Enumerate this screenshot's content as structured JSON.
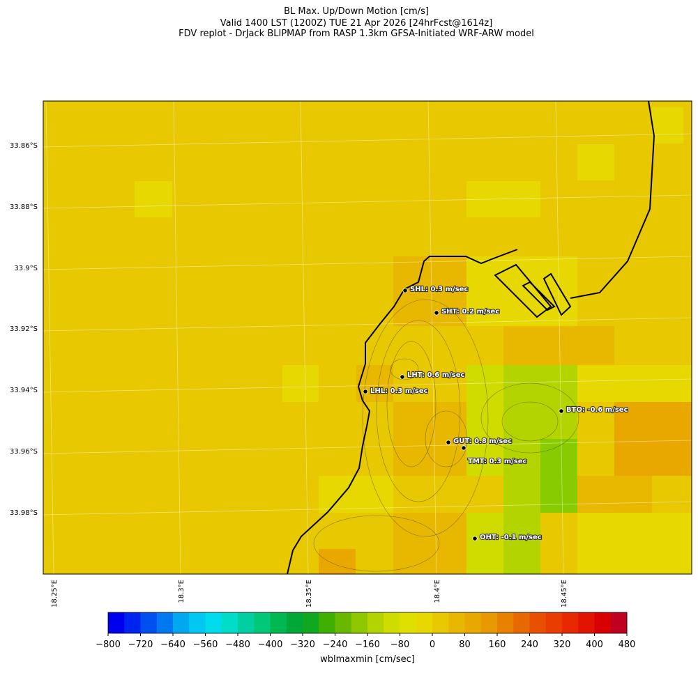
{
  "title": [
    "BL Max. Up/Down Motion [cm/s]",
    "Valid 1400 LST (1200Z) TUE 21 Apr 2026 [24hrFcst@1614z]",
    "FDV replot - DrJack BLIPMAP from RASP 1.3km GFSA-Initiated WRF-ARW model"
  ],
  "map": {
    "lat_labels": [
      "33.86°S",
      "33.88°S",
      "33.9°S",
      "33.92°S",
      "33.94°S",
      "33.96°S",
      "33.98°S"
    ],
    "lon_labels": [
      "18.25°E",
      "18.3°E",
      "18.35°E",
      "18.4°E",
      "18.45°E"
    ],
    "stations": [
      "SHL: 0.3 m/sec",
      "SHT: 0.2 m/sec",
      "LHT: 0.6 m/sec",
      "LHL: 0.3 m/sec",
      "BTO: -0.6 m/sec",
      "GUT: 0.8 m/sec",
      "TMT: 0.3 m/sec",
      "OHT: -0.1 m/sec"
    ]
  },
  "colorbar": {
    "label": "wblmaxmin [cm/sec]",
    "range": [
      -800,
      480
    ],
    "step": 40,
    "colors": [
      "#0000ee",
      "#0024f0",
      "#0050f0",
      "#0078f0",
      "#00a8f0",
      "#00c8f0",
      "#00dcec",
      "#00dcc8",
      "#00d0a0",
      "#00c878",
      "#00b850",
      "#00a838",
      "#10a820",
      "#40b000",
      "#68b800",
      "#90c800",
      "#b4d400",
      "#d0dc00",
      "#e0e000",
      "#e6d800",
      "#e8c800",
      "#e8b800",
      "#e8a800",
      "#e89800",
      "#e88000",
      "#e86800",
      "#e85000",
      "#e83c00",
      "#e82800",
      "#e01400",
      "#d80000",
      "#c00020"
    ],
    "ticks": [
      {
        "value": -800,
        "label": "−800"
      },
      {
        "value": -720,
        "label": "−720"
      },
      {
        "value": -640,
        "label": "−640"
      },
      {
        "value": -560,
        "label": "−560"
      },
      {
        "value": -480,
        "label": "−480"
      },
      {
        "value": -400,
        "label": "−400"
      },
      {
        "value": -320,
        "label": "−320"
      },
      {
        "value": -240,
        "label": "−240"
      },
      {
        "value": -160,
        "label": "−160"
      },
      {
        "value": -80,
        "label": "−80"
      },
      0,
      80,
      160,
      240,
      320,
      400,
      480
    ]
  }
}
